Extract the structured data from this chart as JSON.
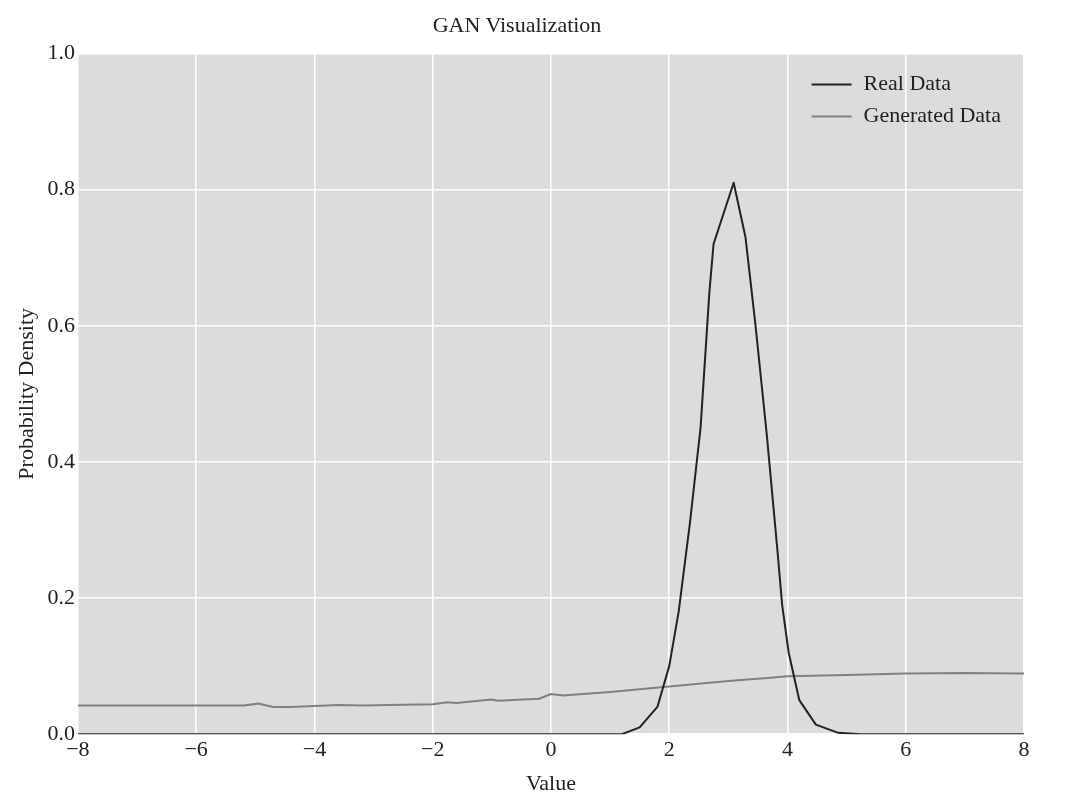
{
  "chart_data": {
    "type": "line",
    "title": "GAN Visualization",
    "xlabel": "Value",
    "ylabel": "Probability Density",
    "xlim": [
      -8,
      8
    ],
    "xticks": [
      -8,
      -6,
      -4,
      -2,
      0,
      2,
      4,
      6,
      8
    ],
    "ylim": [
      0,
      1.0
    ],
    "yticks": [
      {
        "value": 0,
        "label": "0.0"
      },
      0.2,
      0.4,
      0.6,
      0.8,
      {
        "value": 1,
        "label": "1.0"
      }
    ],
    "grid": true,
    "legend": "top right",
    "marker": "none",
    "line_style": "solid",
    "series": [
      {
        "name": "Real Data",
        "color": "#222222",
        "x": [
          -8,
          1.2,
          1.5,
          1.8,
          2.0,
          2.16,
          2.35,
          2.53,
          2.68,
          2.75,
          3.09,
          3.29,
          3.46,
          3.65,
          3.83,
          3.91,
          4.02,
          4.2,
          4.48,
          4.86,
          5.23,
          8
        ],
        "values": [
          0,
          0,
          0.01,
          0.04,
          0.1,
          0.18,
          0.31,
          0.45,
          0.65,
          0.72,
          0.81,
          0.73,
          0.6,
          0.44,
          0.27,
          0.19,
          0.12,
          0.05,
          0.014,
          0.002,
          0,
          0
        ]
      },
      {
        "name": "Generated Data",
        "color": "#808080",
        "x": [
          -8,
          -5.2,
          -4.95,
          -4.7,
          -4.4,
          -3.6,
          -3.2,
          -2.0,
          -1.75,
          -1.6,
          -1.0,
          -0.9,
          -0.2,
          0.0,
          0.2,
          1.0,
          2.0,
          3.0,
          4.0,
          5.0,
          6.0,
          7.0,
          8.0
        ],
        "values": [
          0.042,
          0.042,
          0.045,
          0.04,
          0.04,
          0.043,
          0.042,
          0.044,
          0.047,
          0.046,
          0.051,
          0.049,
          0.052,
          0.059,
          0.057,
          0.062,
          0.07,
          0.078,
          0.085,
          0.087,
          0.089,
          0.09,
          0.089
        ]
      }
    ]
  }
}
